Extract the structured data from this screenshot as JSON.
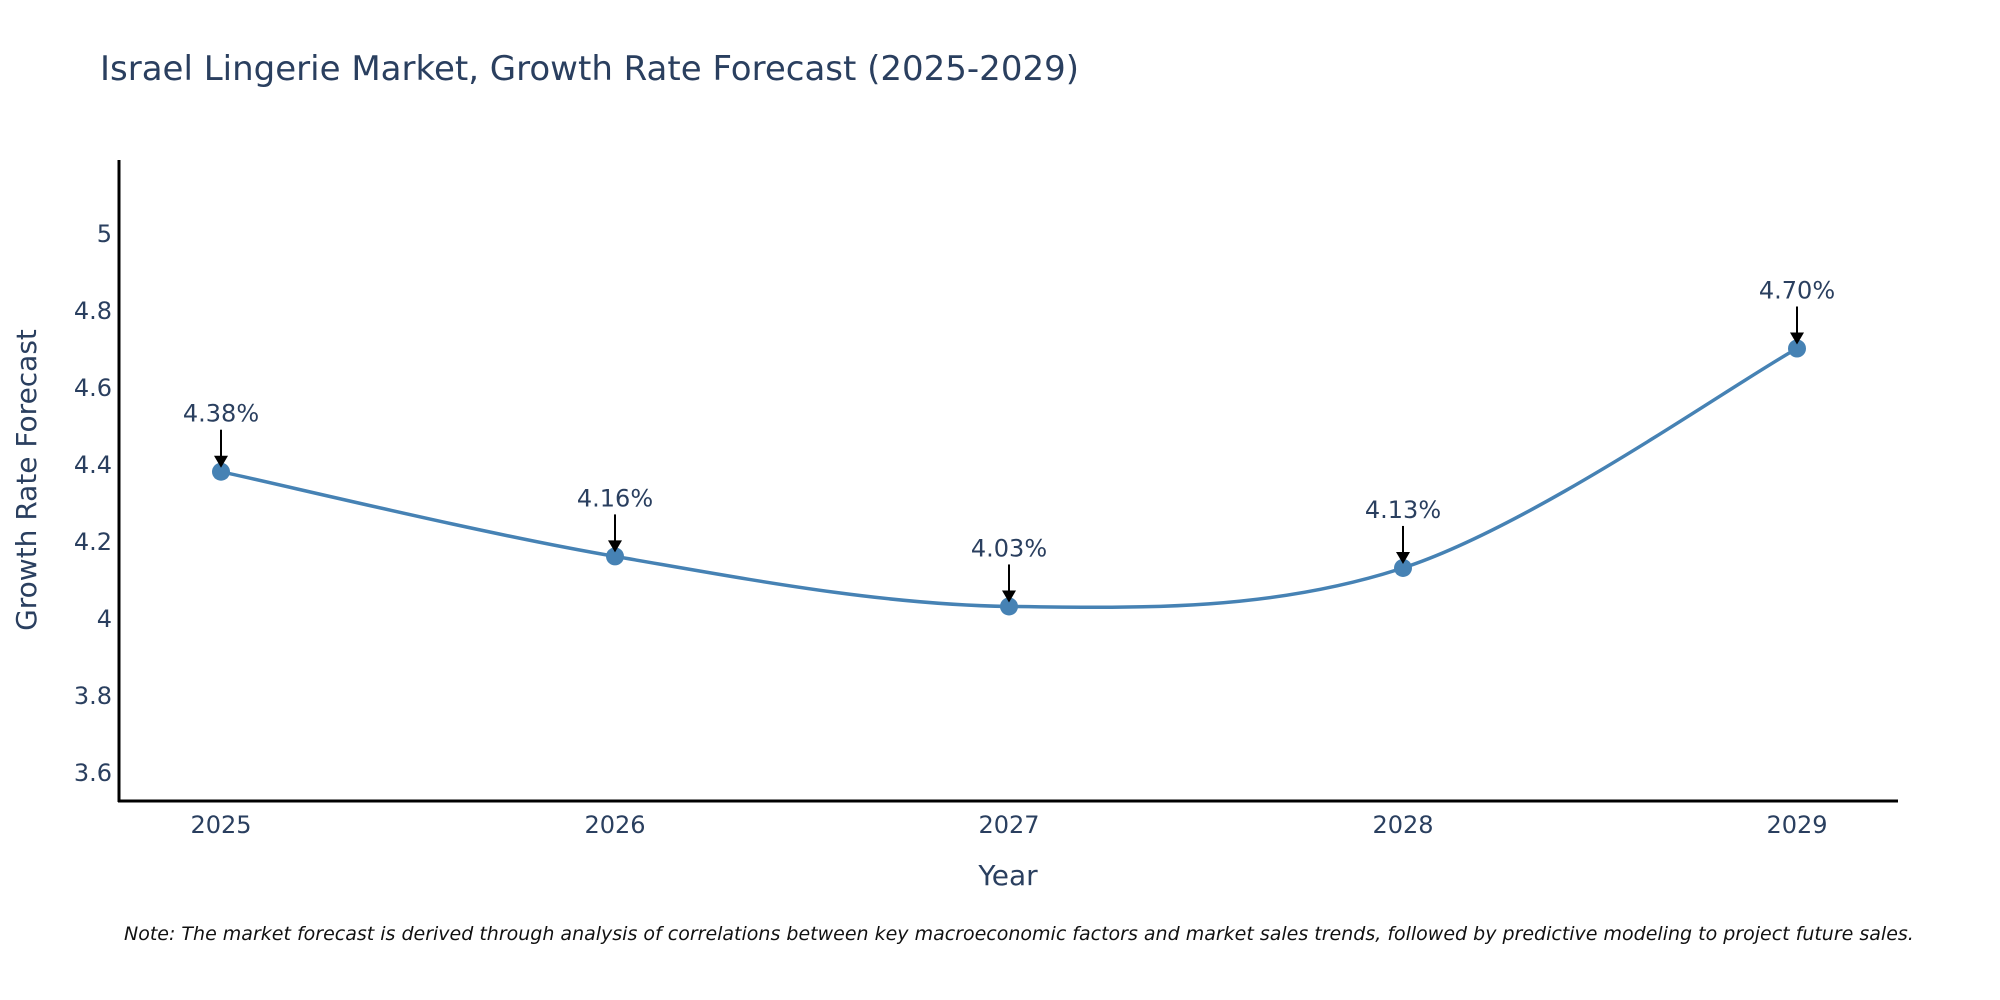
{
  "chart_data": {
    "type": "line",
    "title": "Israel Lingerie Market, Growth Rate Forecast (2025-2029)",
    "xlabel": "Year",
    "ylabel": "Growth Rate Forecast",
    "categories": [
      "2025",
      "2026",
      "2027",
      "2028",
      "2029"
    ],
    "values": [
      4.38,
      4.16,
      4.03,
      4.13,
      4.7
    ],
    "data_labels": [
      "4.38%",
      "4.16%",
      "4.03%",
      "4.13%",
      "4.70%"
    ],
    "y_ticks": [
      3.6,
      3.8,
      4,
      4.2,
      4.4,
      4.6,
      4.8,
      5
    ],
    "y_tick_labels": [
      "3.6",
      "3.8",
      "4",
      "4.2",
      "4.4",
      "4.6",
      "4.8",
      "5"
    ],
    "ylim": [
      3.52,
      5.19
    ],
    "grid": false,
    "line_shape": "spline",
    "note": "Note: The market forecast is derived through analysis of correlations between key macroeconomic factors and market sales trends, followed by predictive modeling to project future sales."
  },
  "colors": {
    "line": "#4682B4",
    "marker": "#4682B4",
    "arrow": "#000000",
    "axis": "#000000",
    "text": "#2a3f5f"
  }
}
